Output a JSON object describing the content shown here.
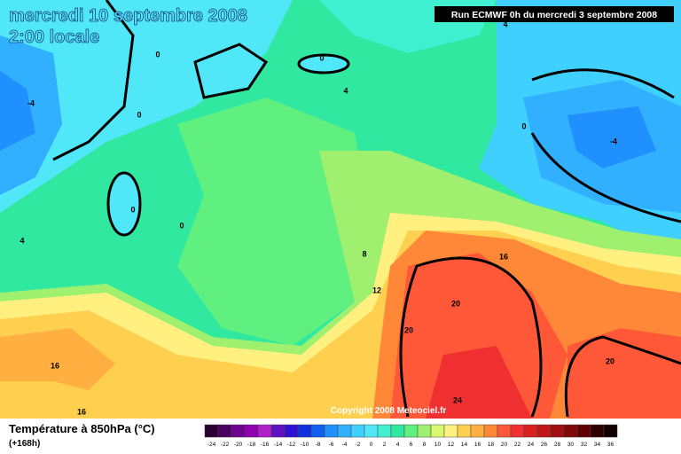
{
  "header": {
    "title": "mercredi 10 septembre 2008",
    "subtitle": "2:00 locale",
    "run": "Run ECMWF 0h du mercredi 3 septembre 2008"
  },
  "map": {
    "contour_labels": [
      4,
      0,
      0,
      4,
      -4,
      0,
      0,
      -4,
      0,
      0,
      4,
      8,
      16,
      12,
      20,
      20,
      16,
      20,
      24,
      16
    ],
    "copyright": "Copyright 2008 Meteociel.fr"
  },
  "legend": {
    "title": "Température à 850hPa (°C)",
    "lead": "(+168h)",
    "scale": [
      {
        "value": -24,
        "color": "#2a0030"
      },
      {
        "value": -22,
        "color": "#4a0060"
      },
      {
        "value": -20,
        "color": "#700090"
      },
      {
        "value": -18,
        "color": "#9000b0"
      },
      {
        "value": -16,
        "color": "#b020c8"
      },
      {
        "value": -14,
        "color": "#6010c0"
      },
      {
        "value": -12,
        "color": "#3010d0"
      },
      {
        "value": -10,
        "color": "#1030e0"
      },
      {
        "value": -8,
        "color": "#1060f0"
      },
      {
        "value": -6,
        "color": "#2090ff"
      },
      {
        "value": -4,
        "color": "#30b0ff"
      },
      {
        "value": -2,
        "color": "#40d0ff"
      },
      {
        "value": 0,
        "color": "#50e8f8"
      },
      {
        "value": 2,
        "color": "#40f0d0"
      },
      {
        "value": 4,
        "color": "#30e8a0"
      },
      {
        "value": 6,
        "color": "#60f080"
      },
      {
        "value": 8,
        "color": "#a0f070"
      },
      {
        "value": 10,
        "color": "#d8f870"
      },
      {
        "value": 12,
        "color": "#fff080"
      },
      {
        "value": 14,
        "color": "#ffd050"
      },
      {
        "value": 16,
        "color": "#ffb040"
      },
      {
        "value": 18,
        "color": "#ff8838"
      },
      {
        "value": 20,
        "color": "#ff5838"
      },
      {
        "value": 22,
        "color": "#f03030"
      },
      {
        "value": 24,
        "color": "#d82020"
      },
      {
        "value": 26,
        "color": "#c01818"
      },
      {
        "value": 28,
        "color": "#a01010"
      },
      {
        "value": 30,
        "color": "#800808"
      },
      {
        "value": 32,
        "color": "#600000"
      },
      {
        "value": 34,
        "color": "#300000"
      },
      {
        "value": 36,
        "color": "#100000"
      }
    ]
  }
}
